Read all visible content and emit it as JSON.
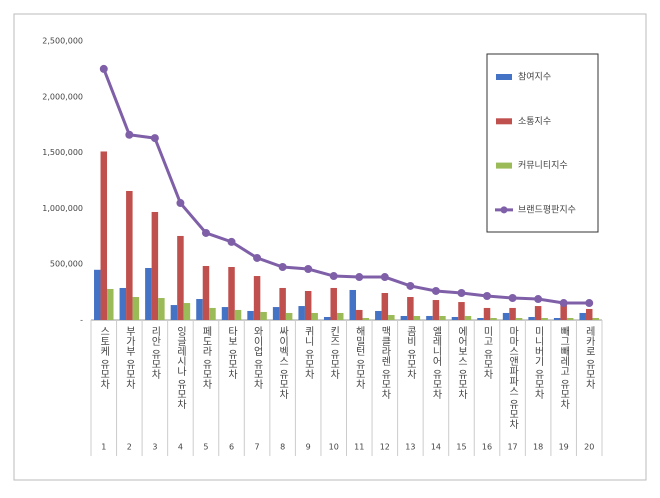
{
  "chart_data": {
    "type": "bar",
    "categories": [
      "스토케 유모차",
      "부가부 유모차",
      "리안 유모차",
      "잉글레시나 유모차",
      "페도라 유모차",
      "타보 유모차",
      "와이업 유모차",
      "싸이벡스 유모차",
      "퀴니 유모차",
      "킨즈 유모차",
      "해밀턴 유모차",
      "맥클라렌 유모차",
      "콤비 유모차",
      "엘레니어 유모차",
      "에어보스 유모차",
      "미고 유모차",
      "마마스앤파파스 유모차",
      "미니버기 유모차",
      "빼그빼레고 유모차",
      "레카로 유모차"
    ],
    "ranks": [
      1,
      2,
      3,
      4,
      5,
      6,
      7,
      8,
      9,
      10,
      11,
      12,
      13,
      14,
      15,
      16,
      17,
      18,
      19,
      20
    ],
    "series": [
      {
        "name": "참여지수",
        "color": "#4472c4",
        "values": [
          450000,
          287000,
          466000,
          134000,
          188000,
          116000,
          81000,
          116000,
          125000,
          27000,
          269000,
          81000,
          36000,
          36000,
          27000,
          18000,
          63000,
          27000,
          18000,
          63000
        ]
      },
      {
        "name": "소통지수",
        "color": "#c0504d",
        "values": [
          1510000,
          1156000,
          968000,
          753000,
          484000,
          475000,
          394000,
          287000,
          260000,
          287000,
          90000,
          242000,
          206000,
          179000,
          161000,
          108000,
          108000,
          125000,
          134000,
          99000
        ]
      },
      {
        "name": "커뮤니티지수",
        "color": "#9bbb59",
        "values": [
          278000,
          206000,
          197000,
          152000,
          108000,
          90000,
          72000,
          63000,
          63000,
          63000,
          18000,
          45000,
          36000,
          36000,
          36000,
          18000,
          18000,
          18000,
          18000,
          18000
        ]
      },
      {
        "name": "브랜드평판지수",
        "color": "#7f60a8",
        "type": "line",
        "values": [
          2250000,
          1660000,
          1630000,
          1048000,
          780000,
          700000,
          556000,
          475000,
          457000,
          394000,
          385000,
          385000,
          305000,
          260000,
          242000,
          215000,
          197000,
          188000,
          152000,
          152000
        ]
      }
    ],
    "ylim": [
      0,
      2500000
    ],
    "yticks": [
      {
        "value": 0,
        "label": "-"
      },
      {
        "value": 500000,
        "label": "500,000"
      },
      {
        "value": 1000000,
        "label": "1,000,000"
      },
      {
        "value": 1500000,
        "label": "1,500,000"
      },
      {
        "value": 2000000,
        "label": "2,000,000"
      },
      {
        "value": 2500000,
        "label": "2,500,000"
      }
    ],
    "grid": false,
    "legend": "right"
  }
}
